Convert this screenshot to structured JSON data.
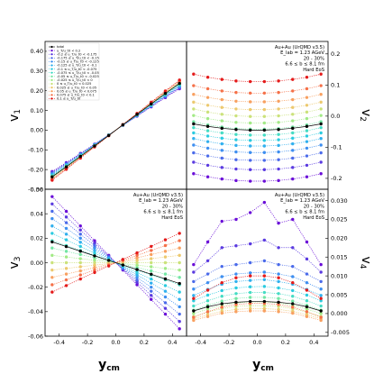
{
  "figure": {
    "xlabel": "y",
    "xlabel_sub": "cm"
  },
  "annotation": [
    "Au+Au (UrQMD v3.5)",
    "E_lab = 1.23 AGeV",
    "20 - 30%",
    "6.6 ≤ b ≤ 8.1 fm",
    "Hard EoS"
  ],
  "series": [
    {
      "name": "total",
      "color": "#000000",
      "dashed": false
    },
    {
      "name": "u_T/u_t0 < 0.2",
      "color": "#6a0dd8",
      "dashed": true
    },
    {
      "name": "-0.2 ≤ u_T/u_t0 < -0.175",
      "color": "#5a3ae0",
      "dashed": true
    },
    {
      "name": "-0.175 ≤ u_T/u_t0 < -0.15",
      "color": "#4a6aea",
      "dashed": true
    },
    {
      "name": "-0.15 ≤ u_T/u_t0 < -0.125",
      "color": "#3d8ef0",
      "dashed": true
    },
    {
      "name": "-0.125 ≤ u_T/u_t0 < -0.1",
      "color": "#30b0ee",
      "dashed": true
    },
    {
      "name": "-0.1 ≤ u_T/u_t0 < -0.075",
      "color": "#2acbe0",
      "dashed": true
    },
    {
      "name": "-0.075 ≤ u_T/u_t0 < -0.05",
      "color": "#44dcc4",
      "dashed": true
    },
    {
      "name": "-0.05 ≤ u_T/u_t0 < -0.025",
      "color": "#72e6a4",
      "dashed": true
    },
    {
      "name": "-0.025 ≤ u_T/u_t0 < 0",
      "color": "#a2ea86",
      "dashed": true
    },
    {
      "name": "0 ≤ u_T/u_t0 < 0.025",
      "color": "#cbe27a",
      "dashed": true
    },
    {
      "name": "0.025 ≤ u_T/u_t0 < 0.05",
      "color": "#ecc96e",
      "dashed": true
    },
    {
      "name": "0.05 ≤ u_T/u_t0 < 0.075",
      "color": "#f8a060",
      "dashed": true
    },
    {
      "name": "0.075 ≤ u_T/u_t0 < 0.1",
      "color": "#f57048",
      "dashed": true
    },
    {
      "name": "0.1 ≤ u_T/u_t0",
      "color": "#e41a1a",
      "dashed": true
    }
  ],
  "chart_data": [
    {
      "type": "line",
      "name": "v1",
      "ylabel": "v",
      "ylabel_sub": "1",
      "x": [
        -0.45,
        -0.35,
        -0.25,
        -0.15,
        -0.05,
        0.05,
        0.15,
        0.25,
        0.35,
        0.45
      ],
      "xlim": [
        -0.5,
        0.5
      ],
      "ylim": [
        -0.3,
        0.45
      ],
      "yticks": [
        -0.3,
        -0.2,
        -0.1,
        0.0,
        0.1,
        0.2,
        0.3,
        0.4
      ],
      "xticks": [],
      "ytick_side": "left",
      "series_values": [
        [
          -0.237,
          -0.186,
          -0.133,
          -0.08,
          -0.027,
          0.027,
          0.08,
          0.133,
          0.186,
          0.237
        ],
        [
          -0.21,
          -0.165,
          -0.118,
          -0.071,
          -0.024,
          0.024,
          0.071,
          0.118,
          0.165,
          0.21
        ],
        [
          -0.214,
          -0.168,
          -0.12,
          -0.072,
          -0.024,
          0.024,
          0.072,
          0.12,
          0.168,
          0.214
        ],
        [
          -0.218,
          -0.171,
          -0.122,
          -0.073,
          -0.024,
          0.024,
          0.073,
          0.122,
          0.171,
          0.218
        ],
        [
          -0.222,
          -0.174,
          -0.124,
          -0.074,
          -0.025,
          0.025,
          0.074,
          0.124,
          0.174,
          0.222
        ],
        [
          -0.226,
          -0.177,
          -0.126,
          -0.076,
          -0.025,
          0.025,
          0.076,
          0.126,
          0.177,
          0.226
        ],
        [
          -0.229,
          -0.18,
          -0.128,
          -0.077,
          -0.026,
          0.026,
          0.077,
          0.128,
          0.18,
          0.229
        ],
        [
          -0.232,
          -0.182,
          -0.13,
          -0.078,
          -0.026,
          0.026,
          0.078,
          0.13,
          0.182,
          0.232
        ],
        [
          -0.235,
          -0.184,
          -0.132,
          -0.079,
          -0.026,
          0.026,
          0.079,
          0.132,
          0.184,
          0.235
        ],
        [
          -0.238,
          -0.187,
          -0.134,
          -0.08,
          -0.027,
          0.027,
          0.08,
          0.134,
          0.187,
          0.238
        ],
        [
          -0.241,
          -0.189,
          -0.135,
          -0.081,
          -0.027,
          0.027,
          0.081,
          0.135,
          0.189,
          0.241
        ],
        [
          -0.244,
          -0.191,
          -0.137,
          -0.082,
          -0.027,
          0.027,
          0.082,
          0.137,
          0.191,
          0.244
        ],
        [
          -0.247,
          -0.194,
          -0.138,
          -0.083,
          -0.028,
          0.028,
          0.083,
          0.138,
          0.194,
          0.247
        ],
        [
          -0.25,
          -0.196,
          -0.14,
          -0.084,
          -0.028,
          0.028,
          0.084,
          0.14,
          0.196,
          0.25
        ],
        [
          -0.254,
          -0.199,
          -0.142,
          -0.085,
          -0.028,
          0.028,
          0.085,
          0.142,
          0.199,
          0.254
        ]
      ]
    },
    {
      "type": "line",
      "name": "v2",
      "ylabel": "v",
      "ylabel_sub": "2",
      "x": [
        -0.45,
        -0.35,
        -0.25,
        -0.15,
        -0.05,
        0.05,
        0.15,
        0.25,
        0.35,
        0.45
      ],
      "xlim": [
        -0.5,
        0.5
      ],
      "ylim": [
        -0.235,
        0.24
      ],
      "yticks": [
        -0.2,
        -0.1,
        0.0,
        0.1,
        0.2
      ],
      "xticks": [],
      "ytick_side": "right",
      "series_values": [
        [
          -0.025,
          -0.033,
          -0.039,
          -0.043,
          -0.045,
          -0.045,
          -0.043,
          -0.039,
          -0.033,
          -0.025
        ],
        [
          -0.185,
          -0.195,
          -0.202,
          -0.207,
          -0.209,
          -0.209,
          -0.207,
          -0.202,
          -0.195,
          -0.185
        ],
        [
          -0.148,
          -0.158,
          -0.165,
          -0.17,
          -0.172,
          -0.172,
          -0.17,
          -0.165,
          -0.158,
          -0.148
        ],
        [
          -0.118,
          -0.128,
          -0.135,
          -0.14,
          -0.142,
          -0.142,
          -0.14,
          -0.135,
          -0.128,
          -0.118
        ],
        [
          -0.093,
          -0.103,
          -0.11,
          -0.115,
          -0.117,
          -0.117,
          -0.115,
          -0.11,
          -0.103,
          -0.093
        ],
        [
          -0.072,
          -0.082,
          -0.089,
          -0.094,
          -0.096,
          -0.096,
          -0.094,
          -0.089,
          -0.082,
          -0.072
        ],
        [
          -0.054,
          -0.064,
          -0.071,
          -0.076,
          -0.078,
          -0.078,
          -0.076,
          -0.071,
          -0.064,
          -0.054
        ],
        [
          -0.037,
          -0.047,
          -0.054,
          -0.059,
          -0.061,
          -0.061,
          -0.059,
          -0.054,
          -0.047,
          -0.037
        ],
        [
          -0.018,
          -0.028,
          -0.035,
          -0.04,
          -0.042,
          -0.042,
          -0.04,
          -0.035,
          -0.028,
          -0.018
        ],
        [
          0.002,
          -0.008,
          -0.015,
          -0.02,
          -0.022,
          -0.022,
          -0.02,
          -0.015,
          -0.008,
          0.002
        ],
        [
          0.023,
          0.013,
          0.006,
          0.001,
          -0.001,
          -0.001,
          0.001,
          0.006,
          0.013,
          0.023
        ],
        [
          0.045,
          0.035,
          0.028,
          0.023,
          0.021,
          0.021,
          0.023,
          0.028,
          0.035,
          0.045
        ],
        [
          0.07,
          0.06,
          0.053,
          0.048,
          0.046,
          0.046,
          0.048,
          0.053,
          0.06,
          0.07
        ],
        [
          0.098,
          0.088,
          0.081,
          0.076,
          0.074,
          0.074,
          0.076,
          0.081,
          0.088,
          0.098
        ],
        [
          0.135,
          0.125,
          0.118,
          0.113,
          0.111,
          0.111,
          0.113,
          0.118,
          0.125,
          0.135
        ]
      ]
    },
    {
      "type": "line",
      "name": "v3",
      "ylabel": "v",
      "ylabel_sub": "3",
      "x": [
        -0.45,
        -0.35,
        -0.25,
        -0.15,
        -0.05,
        0.05,
        0.15,
        0.25,
        0.35,
        0.45
      ],
      "xlim": [
        -0.5,
        0.5
      ],
      "ylim": [
        -0.06,
        0.06
      ],
      "yticks": [
        -0.06,
        -0.04,
        -0.02,
        0.0,
        0.02,
        0.04,
        0.06
      ],
      "xticks": [
        -0.4,
        -0.2,
        0.0,
        0.2,
        0.4
      ],
      "ytick_side": "left",
      "series_values": [
        [
          0.017,
          0.0132,
          0.0094,
          0.0056,
          0.0019,
          -0.0019,
          -0.0056,
          -0.0094,
          -0.0132,
          -0.017
        ],
        [
          0.054,
          0.042,
          0.03,
          0.018,
          0.006,
          -0.006,
          -0.018,
          -0.03,
          -0.042,
          -0.054
        ],
        [
          0.048,
          0.0373,
          0.0267,
          0.016,
          0.0053,
          -0.0053,
          -0.016,
          -0.0267,
          -0.0373,
          -0.048
        ],
        [
          0.042,
          0.0327,
          0.0233,
          0.014,
          0.0047,
          -0.0047,
          -0.014,
          -0.0233,
          -0.0327,
          -0.042
        ],
        [
          0.036,
          0.028,
          0.02,
          0.012,
          0.004,
          -0.004,
          -0.012,
          -0.02,
          -0.028,
          -0.036
        ],
        [
          0.03,
          0.0233,
          0.0167,
          0.01,
          0.0033,
          -0.0033,
          -0.01,
          -0.0167,
          -0.0233,
          -0.03
        ],
        [
          0.024,
          0.0187,
          0.0133,
          0.008,
          0.0027,
          -0.0027,
          -0.008,
          -0.0133,
          -0.0187,
          -0.024
        ],
        [
          0.018,
          0.014,
          0.01,
          0.006,
          0.002,
          -0.002,
          -0.006,
          -0.01,
          -0.014,
          -0.018
        ],
        [
          0.012,
          0.0093,
          0.0067,
          0.004,
          0.0013,
          -0.0013,
          -0.004,
          -0.0067,
          -0.0093,
          -0.012
        ],
        [
          0.006,
          0.0047,
          0.0033,
          0.002,
          0.0007,
          -0.0007,
          -0.002,
          -0.0033,
          -0.0047,
          -0.006
        ],
        [
          0.0,
          0.0,
          0.0,
          0.0,
          0.0,
          0.0,
          0.0,
          0.0,
          0.0,
          0.0
        ],
        [
          -0.006,
          -0.0047,
          -0.0033,
          -0.002,
          -0.0007,
          0.0007,
          0.002,
          0.0033,
          0.0047,
          0.006
        ],
        [
          -0.012,
          -0.0093,
          -0.0067,
          -0.004,
          -0.0013,
          0.0013,
          0.004,
          0.0067,
          0.0093,
          0.012
        ],
        [
          -0.018,
          -0.014,
          -0.01,
          -0.006,
          -0.002,
          0.002,
          0.006,
          0.01,
          0.014,
          0.018
        ],
        [
          -0.024,
          -0.0187,
          -0.0133,
          -0.008,
          -0.0027,
          0.0027,
          0.008,
          0.0133,
          0.0187,
          0.024
        ]
      ]
    },
    {
      "type": "line",
      "name": "v4",
      "ylabel": "v",
      "ylabel_sub": "4",
      "x": [
        -0.45,
        -0.35,
        -0.25,
        -0.15,
        -0.05,
        0.05,
        0.15,
        0.25,
        0.35,
        0.45
      ],
      "xlim": [
        -0.5,
        0.5
      ],
      "ylim": [
        -0.006,
        0.033
      ],
      "yticks": [
        -0.005,
        0.0,
        0.005,
        0.01,
        0.015,
        0.02,
        0.025,
        0.03
      ],
      "xticks": [
        -0.4,
        -0.2,
        0.0,
        0.2,
        0.4
      ],
      "ytick_side": "right",
      "series_values": [
        [
          0.0007,
          0.0018,
          0.0026,
          0.003,
          0.0032,
          0.0032,
          0.003,
          0.0026,
          0.0018,
          0.0007
        ],
        [
          0.013,
          0.019,
          0.0245,
          0.025,
          0.0268,
          0.0295,
          0.024,
          0.025,
          0.019,
          0.013
        ],
        [
          0.011,
          0.014,
          0.0175,
          0.018,
          0.0185,
          0.0195,
          0.0175,
          0.0175,
          0.0145,
          0.011
        ],
        [
          0.0085,
          0.0105,
          0.0125,
          0.013,
          0.0135,
          0.014,
          0.013,
          0.0125,
          0.0105,
          0.0085
        ],
        [
          0.0065,
          0.0082,
          0.0098,
          0.0105,
          0.0108,
          0.011,
          0.0105,
          0.0098,
          0.0082,
          0.0065
        ],
        [
          0.0048,
          0.0064,
          0.0078,
          0.0085,
          0.0088,
          0.009,
          0.0085,
          0.0078,
          0.0064,
          0.0048
        ],
        [
          0.0034,
          0.0049,
          0.0061,
          0.0068,
          0.0071,
          0.0072,
          0.0068,
          0.0061,
          0.0049,
          0.0034
        ],
        [
          0.002,
          0.0034,
          0.0046,
          0.0053,
          0.0056,
          0.0056,
          0.0053,
          0.0046,
          0.0034,
          0.002
        ],
        [
          0.0009,
          0.0022,
          0.0033,
          0.004,
          0.0043,
          0.0043,
          0.004,
          0.0033,
          0.0022,
          0.0009
        ],
        [
          0.0,
          0.0012,
          0.0022,
          0.0028,
          0.0031,
          0.0031,
          0.0028,
          0.0022,
          0.0012,
          0.0
        ],
        [
          -0.0008,
          0.0004,
          0.0013,
          0.0019,
          0.0021,
          0.0021,
          0.0019,
          0.0013,
          0.0004,
          -0.0008
        ],
        [
          -0.0014,
          -0.0003,
          0.0006,
          0.0011,
          0.0013,
          0.0013,
          0.0011,
          0.0006,
          -0.0003,
          -0.0014
        ],
        [
          -0.0018,
          -0.0008,
          0.0001,
          0.0005,
          0.0007,
          0.0007,
          0.0005,
          0.0001,
          -0.0008,
          -0.0018
        ],
        [
          -0.001,
          0.0005,
          0.0017,
          0.0024,
          0.0027,
          0.0027,
          0.0024,
          0.0017,
          0.0005,
          -0.001
        ],
        [
          0.004,
          0.0062,
          0.0082,
          0.0095,
          0.01,
          0.01,
          0.0095,
          0.0082,
          0.0062,
          0.004
        ]
      ]
    }
  ]
}
